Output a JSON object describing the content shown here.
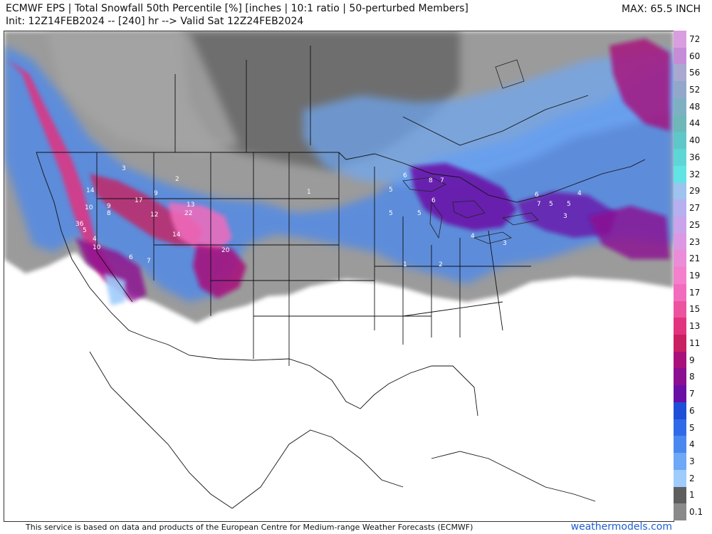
{
  "header": {
    "title_line1": "ECMWF EPS | Total Snowfall 50th Percentile [%] [inches | 10:1 ratio | 50-perturbed Members]",
    "title_line2": "Init: 12Z14FEB2024 -- [240] hr --> Valid Sat 12Z24FEB2024",
    "max_label": "MAX: 65.5 INCH"
  },
  "footer": {
    "note": "This service is based on data and products of the European Centre for Medium-range Weather Forecasts (ECMWF)",
    "site": "weathermodels.com"
  },
  "legend": [
    {
      "label": "72",
      "color": "#d99ee0"
    },
    {
      "label": "60",
      "color": "#c78cd8"
    },
    {
      "label": "56",
      "color": "#a8a8d0"
    },
    {
      "label": "52",
      "color": "#93a7cc"
    },
    {
      "label": "48",
      "color": "#7eb0c4"
    },
    {
      "label": "44",
      "color": "#6fb7b8"
    },
    {
      "label": "40",
      "color": "#5fc7c7"
    },
    {
      "label": "36",
      "color": "#5fd6d6"
    },
    {
      "label": "32",
      "color": "#63e4e4"
    },
    {
      "label": "29",
      "color": "#9ec3ef"
    },
    {
      "label": "27",
      "color": "#b7b0f0"
    },
    {
      "label": "25",
      "color": "#c9a4ea"
    },
    {
      "label": "23",
      "color": "#dc98e2"
    },
    {
      "label": "21",
      "color": "#ea8cd7"
    },
    {
      "label": "19",
      "color": "#f47fcc"
    },
    {
      "label": "17",
      "color": "#f26cbd"
    },
    {
      "label": "15",
      "color": "#ec539f"
    },
    {
      "label": "13",
      "color": "#e2337f"
    },
    {
      "label": "11",
      "color": "#c82060"
    },
    {
      "label": "9",
      "color": "#a8117a"
    },
    {
      "label": "8",
      "color": "#8c0f92"
    },
    {
      "label": "7",
      "color": "#6a0fa6"
    },
    {
      "label": "6",
      "color": "#1f4fd8"
    },
    {
      "label": "5",
      "color": "#2f6be8"
    },
    {
      "label": "4",
      "color": "#4a88f0"
    },
    {
      "label": "3",
      "color": "#6ea8f6"
    },
    {
      "label": "2",
      "color": "#a0ccfb"
    },
    {
      "label": "1",
      "color": "#5e5e5e"
    },
    {
      "label": "0.1",
      "color": "#8a8a8a"
    }
  ],
  "map_labels": [
    "14",
    "10",
    "9",
    "8",
    "17",
    "12",
    "13",
    "22",
    "14",
    "20",
    "10",
    "36",
    "4",
    "5",
    "6",
    "7",
    "9",
    "3",
    "2",
    "1",
    "6",
    "5",
    "8",
    "7",
    "6",
    "5",
    "5",
    "4",
    "3",
    "2",
    "1",
    "6",
    "7",
    "5",
    "3",
    "4",
    "5"
  ]
}
